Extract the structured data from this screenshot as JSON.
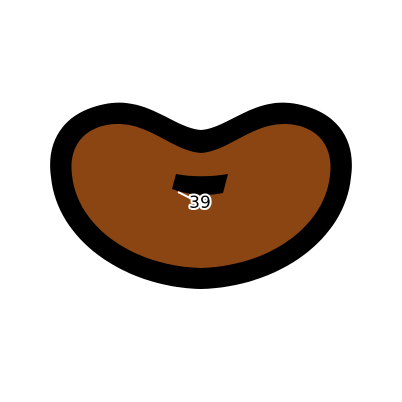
{
  "bean": {
    "number": "39",
    "colors": {
      "background": "#ffffff",
      "outline": "#000000",
      "fill": "#8b4513",
      "notch": "#000000",
      "label_text": "#000000",
      "label_halo": "#ffffff",
      "pointer": "#ffffff"
    }
  }
}
